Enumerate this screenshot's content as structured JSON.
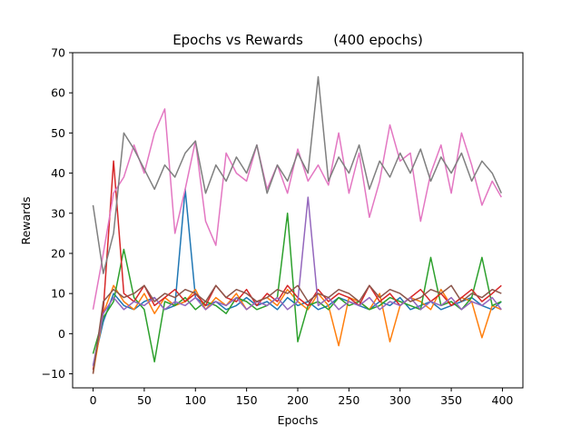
{
  "chart_data": {
    "type": "line",
    "title": "Epochs vs Rewards       (400 epochs)",
    "xlabel": "Epochs",
    "ylabel": "Rewards",
    "xlim": [
      -20,
      420
    ],
    "ylim": [
      -13.5,
      70
    ],
    "xticks": [
      0,
      50,
      100,
      150,
      200,
      250,
      300,
      350,
      400
    ],
    "yticks": [
      -10,
      0,
      10,
      20,
      30,
      40,
      50,
      60,
      70
    ],
    "grid": false,
    "legend": "none",
    "n_epochs": 400,
    "series": [
      {
        "color": "#1f77b4",
        "x": [
          0,
          10,
          20,
          30,
          40,
          50,
          60,
          70,
          80,
          90,
          100,
          110,
          120,
          130,
          140,
          150,
          160,
          170,
          180,
          190,
          200,
          210,
          220,
          230,
          240,
          250,
          260,
          270,
          280,
          290,
          300,
          310,
          320,
          330,
          340,
          350,
          360,
          370,
          380,
          390,
          399
        ],
        "y": [
          -8,
          3,
          10,
          7,
          6,
          8,
          9,
          6,
          7,
          36,
          9,
          7,
          8,
          6,
          7,
          9,
          7,
          8,
          6,
          9,
          7,
          8,
          6,
          7,
          9,
          8,
          7,
          6,
          8,
          7,
          9,
          6,
          7,
          8,
          6,
          7,
          8,
          9,
          7,
          6,
          8
        ]
      },
      {
        "color": "#ff7f0e",
        "x": [
          0,
          10,
          20,
          30,
          40,
          50,
          60,
          70,
          80,
          90,
          100,
          110,
          120,
          130,
          140,
          150,
          160,
          170,
          180,
          190,
          200,
          210,
          220,
          230,
          240,
          250,
          260,
          270,
          280,
          290,
          300,
          310,
          320,
          330,
          340,
          350,
          360,
          370,
          380,
          390,
          399
        ],
        "y": [
          -10,
          5,
          12,
          8,
          6,
          10,
          5,
          9,
          7,
          8,
          11,
          6,
          9,
          7,
          10,
          6,
          8,
          9,
          7,
          11,
          8,
          6,
          10,
          7,
          -3,
          9,
          8,
          6,
          10,
          -2,
          7,
          9,
          8,
          6,
          11,
          7,
          9,
          8,
          -1,
          7,
          6
        ]
      },
      {
        "color": "#2ca02c",
        "x": [
          0,
          10,
          20,
          30,
          40,
          50,
          60,
          70,
          80,
          90,
          100,
          110,
          120,
          130,
          140,
          150,
          160,
          170,
          180,
          190,
          200,
          210,
          220,
          230,
          240,
          250,
          260,
          270,
          280,
          290,
          300,
          310,
          320,
          330,
          340,
          350,
          360,
          370,
          380,
          390,
          399
        ],
        "y": [
          -5,
          4,
          8,
          21,
          9,
          6,
          -7,
          8,
          7,
          9,
          6,
          8,
          7,
          5,
          9,
          8,
          6,
          7,
          9,
          30,
          -2,
          7,
          8,
          6,
          9,
          7,
          8,
          6,
          7,
          9,
          8,
          7,
          6,
          19,
          7,
          8,
          6,
          9,
          19,
          7,
          8
        ]
      },
      {
        "color": "#d62728",
        "x": [
          0,
          10,
          20,
          30,
          40,
          50,
          60,
          70,
          80,
          90,
          100,
          110,
          120,
          130,
          140,
          150,
          160,
          170,
          180,
          190,
          200,
          210,
          220,
          230,
          240,
          250,
          260,
          270,
          280,
          290,
          300,
          310,
          320,
          330,
          340,
          350,
          360,
          370,
          380,
          390,
          399
        ],
        "y": [
          -9,
          6,
          43,
          10,
          8,
          12,
          7,
          9,
          11,
          8,
          10,
          7,
          12,
          9,
          8,
          11,
          7,
          10,
          8,
          12,
          9,
          7,
          11,
          8,
          10,
          9,
          7,
          12,
          8,
          10,
          7,
          9,
          11,
          8,
          10,
          7,
          9,
          11,
          8,
          10,
          12
        ]
      },
      {
        "color": "#9467bd",
        "x": [
          0,
          10,
          20,
          30,
          40,
          50,
          60,
          70,
          80,
          90,
          100,
          110,
          120,
          130,
          140,
          150,
          160,
          170,
          180,
          190,
          200,
          210,
          220,
          230,
          240,
          250,
          260,
          270,
          280,
          290,
          300,
          310,
          320,
          330,
          340,
          350,
          360,
          370,
          380,
          390,
          399
        ],
        "y": [
          -8,
          5,
          9,
          6,
          8,
          7,
          9,
          6,
          8,
          7,
          9,
          6,
          8,
          7,
          9,
          6,
          8,
          7,
          9,
          6,
          8,
          34,
          7,
          9,
          6,
          8,
          7,
          9,
          6,
          8,
          7,
          9,
          6,
          8,
          7,
          9,
          6,
          8,
          7,
          9,
          6
        ]
      },
      {
        "color": "#8c564b",
        "x": [
          0,
          10,
          20,
          30,
          40,
          50,
          60,
          70,
          80,
          90,
          100,
          110,
          120,
          130,
          140,
          150,
          160,
          170,
          180,
          190,
          200,
          210,
          220,
          230,
          240,
          250,
          260,
          270,
          280,
          290,
          300,
          310,
          320,
          330,
          340,
          350,
          360,
          370,
          380,
          390,
          399
        ],
        "y": [
          -10,
          8,
          11,
          9,
          10,
          12,
          8,
          10,
          9,
          11,
          10,
          8,
          12,
          9,
          11,
          10,
          8,
          9,
          11,
          10,
          12,
          8,
          10,
          9,
          11,
          10,
          8,
          12,
          9,
          11,
          10,
          8,
          9,
          11,
          10,
          12,
          8,
          10,
          9,
          11,
          10
        ]
      },
      {
        "color": "#e377c2",
        "x": [
          0,
          10,
          20,
          30,
          40,
          50,
          60,
          70,
          80,
          90,
          100,
          110,
          120,
          130,
          140,
          150,
          160,
          170,
          180,
          190,
          200,
          210,
          220,
          230,
          240,
          250,
          260,
          270,
          280,
          290,
          300,
          310,
          320,
          330,
          340,
          350,
          360,
          370,
          380,
          390,
          399
        ],
        "y": [
          6,
          20,
          35,
          39,
          47,
          40,
          50,
          56,
          25,
          36,
          48,
          28,
          22,
          45,
          40,
          38,
          47,
          36,
          42,
          35,
          46,
          38,
          42,
          37,
          50,
          35,
          45,
          29,
          38,
          52,
          43,
          45,
          28,
          40,
          47,
          35,
          50,
          42,
          32,
          38,
          34
        ]
      },
      {
        "color": "#7f7f7f",
        "x": [
          0,
          10,
          20,
          30,
          40,
          50,
          60,
          70,
          80,
          90,
          100,
          110,
          120,
          130,
          140,
          150,
          160,
          170,
          180,
          190,
          200,
          210,
          220,
          230,
          240,
          250,
          260,
          270,
          280,
          290,
          300,
          310,
          320,
          330,
          340,
          350,
          360,
          370,
          380,
          390,
          399
        ],
        "y": [
          32,
          15,
          25,
          50,
          46,
          41,
          36,
          42,
          39,
          45,
          48,
          35,
          42,
          38,
          44,
          40,
          47,
          35,
          42,
          38,
          45,
          40,
          64,
          38,
          44,
          40,
          47,
          36,
          43,
          39,
          45,
          40,
          46,
          38,
          44,
          40,
          45,
          38,
          43,
          40,
          35
        ]
      }
    ]
  }
}
